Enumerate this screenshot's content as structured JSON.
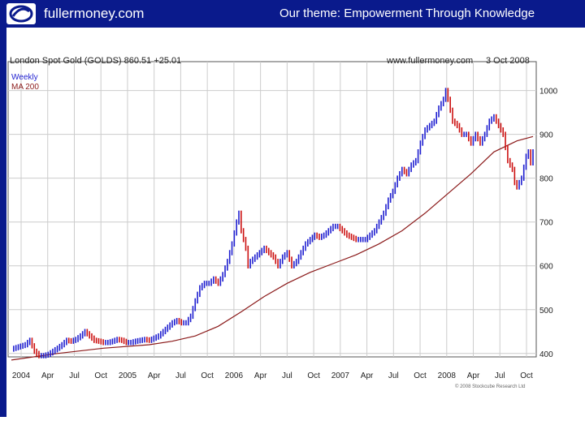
{
  "header": {
    "brand": "fullermoney.com",
    "tagline": "Our theme: Empowerment Through Knowledge",
    "logo_icon": "globe-swirl-icon",
    "bg_color": "#0a1a8c"
  },
  "chart_data": {
    "type": "line",
    "title": "London Spot Gold (GOLDS) 860.51 +25.01",
    "source_label": "www.fullermoney.com",
    "date_label": "3 Oct 2008",
    "frequency_label": "Weekly",
    "ma_label": "MA 200",
    "copyright": "© 2008 Stockcube Research Ltd",
    "colors": {
      "up": "#1f1fd0",
      "down": "#cc1111",
      "ma": "#8b1a1a",
      "grid": "#cccccc",
      "frame": "#555555"
    },
    "ylim": [
      370,
      1040
    ],
    "y_ticks": [
      {
        "value": 1000,
        "label": "1000"
      },
      {
        "value": 900,
        "label": "900"
      },
      {
        "value": 800,
        "label": "800"
      },
      {
        "value": 700,
        "label": "700"
      },
      {
        "value": 600,
        "label": "600"
      },
      {
        "value": 500,
        "label": "500"
      },
      {
        "value": 400,
        "label": "400"
      }
    ],
    "x_ticks": [
      "2004",
      "Apr",
      "Jul",
      "Oct",
      "2005",
      "Apr",
      "Jul",
      "Oct",
      "2006",
      "Apr",
      "Jul",
      "Oct",
      "2007",
      "Apr",
      "Jul",
      "Oct",
      "2008",
      "Apr",
      "Jul",
      "Oct"
    ],
    "grid": true,
    "price_series": {
      "name": "London Spot Gold",
      "points": [
        [
          0,
          410
        ],
        [
          3,
          415
        ],
        [
          6,
          420
        ],
        [
          8,
          430
        ],
        [
          10,
          405
        ],
        [
          12,
          395
        ],
        [
          14,
          395
        ],
        [
          16,
          398
        ],
        [
          18,
          405
        ],
        [
          20,
          412
        ],
        [
          22,
          420
        ],
        [
          24,
          430
        ],
        [
          26,
          428
        ],
        [
          28,
          432
        ],
        [
          30,
          440
        ],
        [
          32,
          450
        ],
        [
          34,
          440
        ],
        [
          36,
          430
        ],
        [
          38,
          428
        ],
        [
          40,
          425
        ],
        [
          42,
          425
        ],
        [
          44,
          428
        ],
        [
          46,
          432
        ],
        [
          48,
          430
        ],
        [
          50,
          425
        ],
        [
          52,
          425
        ],
        [
          54,
          428
        ],
        [
          56,
          430
        ],
        [
          58,
          432
        ],
        [
          60,
          430
        ],
        [
          62,
          435
        ],
        [
          64,
          440
        ],
        [
          66,
          450
        ],
        [
          68,
          460
        ],
        [
          70,
          470
        ],
        [
          72,
          475
        ],
        [
          74,
          470
        ],
        [
          76,
          470
        ],
        [
          78,
          485
        ],
        [
          80,
          520
        ],
        [
          82,
          550
        ],
        [
          84,
          560
        ],
        [
          86,
          560
        ],
        [
          88,
          570
        ],
        [
          90,
          560
        ],
        [
          92,
          580
        ],
        [
          94,
          610
        ],
        [
          96,
          650
        ],
        [
          98,
          700
        ],
        [
          99,
          720
        ],
        [
          100,
          680
        ],
        [
          102,
          640
        ],
        [
          103,
          600
        ],
        [
          104,
          610
        ],
        [
          106,
          620
        ],
        [
          108,
          630
        ],
        [
          110,
          640
        ],
        [
          112,
          630
        ],
        [
          114,
          620
        ],
        [
          116,
          600
        ],
        [
          118,
          620
        ],
        [
          120,
          630
        ],
        [
          122,
          600
        ],
        [
          124,
          610
        ],
        [
          126,
          630
        ],
        [
          128,
          650
        ],
        [
          130,
          660
        ],
        [
          132,
          670
        ],
        [
          134,
          665
        ],
        [
          136,
          670
        ],
        [
          138,
          680
        ],
        [
          140,
          690
        ],
        [
          142,
          690
        ],
        [
          144,
          680
        ],
        [
          146,
          670
        ],
        [
          148,
          665
        ],
        [
          150,
          660
        ],
        [
          152,
          660
        ],
        [
          154,
          660
        ],
        [
          156,
          670
        ],
        [
          158,
          680
        ],
        [
          160,
          700
        ],
        [
          162,
          720
        ],
        [
          164,
          750
        ],
        [
          166,
          770
        ],
        [
          168,
          800
        ],
        [
          170,
          820
        ],
        [
          172,
          810
        ],
        [
          174,
          830
        ],
        [
          176,
          840
        ],
        [
          178,
          880
        ],
        [
          180,
          910
        ],
        [
          182,
          920
        ],
        [
          184,
          930
        ],
        [
          186,
          960
        ],
        [
          188,
          980
        ],
        [
          189,
          1000
        ],
        [
          190,
          980
        ],
        [
          192,
          930
        ],
        [
          194,
          920
        ],
        [
          196,
          900
        ],
        [
          198,
          900
        ],
        [
          200,
          880
        ],
        [
          202,
          900
        ],
        [
          204,
          880
        ],
        [
          206,
          900
        ],
        [
          208,
          930
        ],
        [
          210,
          940
        ],
        [
          212,
          920
        ],
        [
          214,
          900
        ],
        [
          216,
          840
        ],
        [
          218,
          820
        ],
        [
          219,
          790
        ],
        [
          220,
          780
        ],
        [
          222,
          800
        ],
        [
          224,
          850
        ],
        [
          225,
          860
        ],
        [
          226,
          835
        ],
        [
          227,
          860
        ]
      ]
    },
    "ma_series": {
      "name": "MA 200",
      "points": [
        [
          0,
          385
        ],
        [
          20,
          400
        ],
        [
          40,
          412
        ],
        [
          60,
          420
        ],
        [
          70,
          428
        ],
        [
          80,
          440
        ],
        [
          90,
          462
        ],
        [
          100,
          495
        ],
        [
          110,
          530
        ],
        [
          120,
          560
        ],
        [
          130,
          585
        ],
        [
          140,
          605
        ],
        [
          150,
          625
        ],
        [
          160,
          650
        ],
        [
          170,
          680
        ],
        [
          180,
          720
        ],
        [
          190,
          765
        ],
        [
          200,
          810
        ],
        [
          210,
          860
        ],
        [
          220,
          885
        ],
        [
          227,
          895
        ]
      ]
    }
  }
}
